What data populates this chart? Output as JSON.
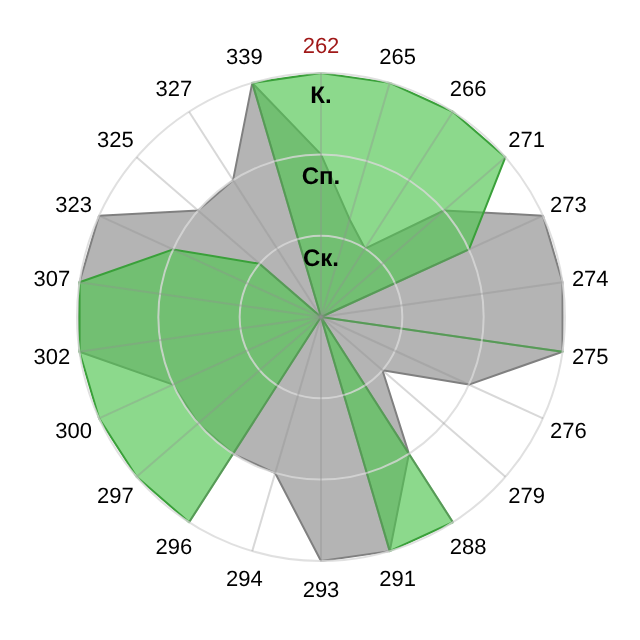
{
  "chart_data": {
    "type": "radar",
    "categories": [
      "262",
      "265",
      "266",
      "271",
      "273",
      "274",
      "275",
      "276",
      "279",
      "288",
      "291",
      "293",
      "294",
      "296",
      "297",
      "300",
      "302",
      "307",
      "323",
      "325",
      "327",
      "339"
    ],
    "ylim": [
      0,
      3
    ],
    "yticks": [
      {
        "value": 1,
        "label": "Ск."
      },
      {
        "value": 2,
        "label": "Сп."
      },
      {
        "value": 3,
        "label": "К."
      }
    ],
    "grid": true,
    "series": [
      {
        "color": "#b4b4b4",
        "values": [
          2,
          1.25,
          1,
          2,
          3,
          3,
          3,
          2,
          1,
          2,
          3,
          3,
          2,
          2,
          2,
          2,
          3,
          3,
          3,
          2,
          2,
          3
        ]
      },
      {
        "color": "#4fc44f",
        "values": [
          3,
          3,
          3,
          3,
          2,
          0,
          3,
          0,
          0,
          3,
          3,
          0,
          0,
          3,
          3,
          3,
          3,
          3,
          2,
          1,
          0,
          3
        ]
      }
    ]
  }
}
